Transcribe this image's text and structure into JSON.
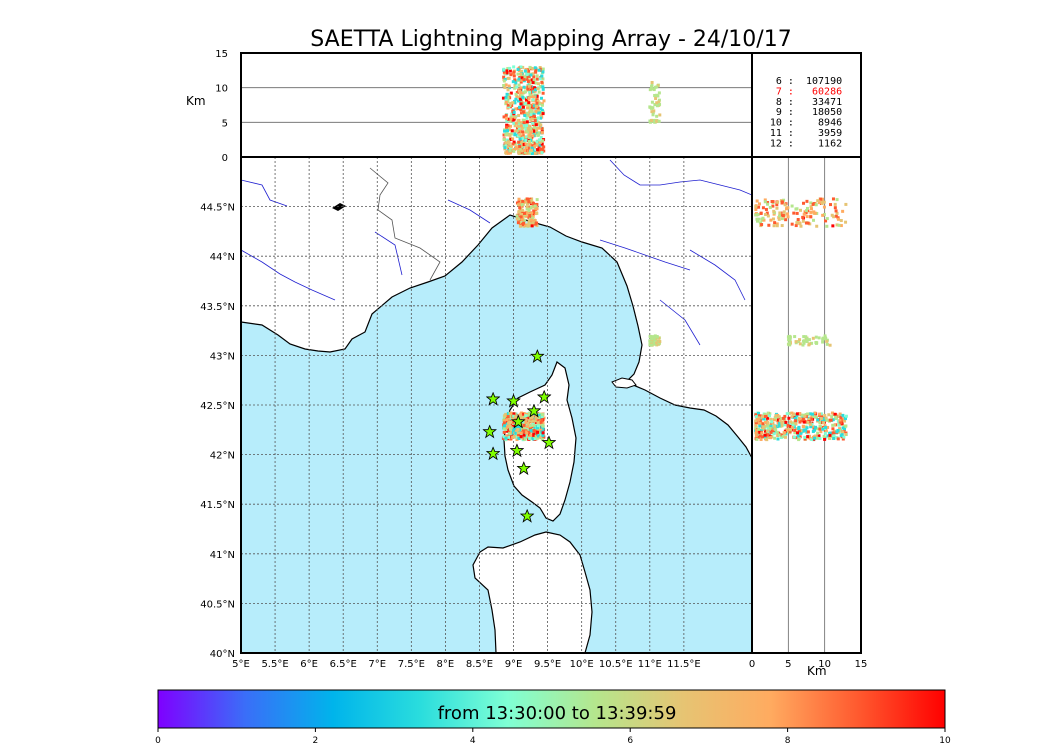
{
  "chart_data": {
    "type": "scatter",
    "title": "SAETTA Lightning Mapping Array - 24/10/17",
    "map": {
      "lon_range": [
        5,
        12.5
      ],
      "lat_range": [
        40,
        45
      ],
      "lon_ticks": [
        "5°E",
        "5.5°E",
        "6°E",
        "6.5°E",
        "7°E",
        "7.5°E",
        "8°E",
        "8.5°E",
        "9°E",
        "9.5°E",
        "10°E",
        "10.5°E",
        "11°E",
        "11.5°E"
      ],
      "lat_ticks": [
        "40°N",
        "40.5°N",
        "41°N",
        "41.5°N",
        "42°N",
        "42.5°N",
        "43°N",
        "43.5°N",
        "44°N",
        "44.5°N"
      ],
      "grid": true
    },
    "altitude_panel": {
      "ylabel": "Km",
      "ylim": [
        0,
        15
      ],
      "yticks": [
        "0",
        "5",
        "10",
        "15"
      ]
    },
    "side_panel": {
      "xlabel": "Km",
      "xlim": [
        0,
        15
      ],
      "xticks": [
        "0",
        "5",
        "10",
        "15"
      ]
    },
    "counts": [
      {
        "label": "6",
        "value": "107190",
        "highlight": false
      },
      {
        "label": "7",
        "value": "60286",
        "highlight": true
      },
      {
        "label": "8",
        "value": "33471",
        "highlight": false
      },
      {
        "label": "9",
        "value": "18050",
        "highlight": false
      },
      {
        "label": "10",
        "value": "8946",
        "highlight": false
      },
      {
        "label": "11",
        "value": "3959",
        "highlight": false
      },
      {
        "label": "12",
        "value": "1162",
        "highlight": false
      }
    ],
    "stations": [
      {
        "lon": 8.7,
        "lat": 42.56
      },
      {
        "lon": 9.0,
        "lat": 42.54
      },
      {
        "lon": 9.35,
        "lat": 42.99
      },
      {
        "lon": 9.45,
        "lat": 42.58
      },
      {
        "lon": 9.3,
        "lat": 42.44
      },
      {
        "lon": 9.07,
        "lat": 42.33
      },
      {
        "lon": 8.65,
        "lat": 42.23
      },
      {
        "lon": 8.7,
        "lat": 42.01
      },
      {
        "lon": 9.05,
        "lat": 42.04
      },
      {
        "lon": 9.52,
        "lat": 42.12
      },
      {
        "lon": 9.15,
        "lat": 41.86
      },
      {
        "lon": 9.2,
        "lat": 41.38
      }
    ],
    "clusters": [
      {
        "lon": [
          9.05,
          9.35
        ],
        "lat": [
          44.3,
          44.58
        ],
        "alt": [
          0.5,
          13
        ],
        "time_range": [
          5,
          9.5
        ],
        "n": 160
      },
      {
        "lon": [
          11.0,
          11.15
        ],
        "lat": [
          43.1,
          43.2
        ],
        "alt": [
          5,
          11
        ],
        "time_range": [
          5.5,
          6.5
        ],
        "n": 50
      },
      {
        "lon": [
          8.85,
          9.45
        ],
        "lat": [
          42.15,
          42.42
        ],
        "alt": [
          0.5,
          13
        ],
        "time_range": [
          3,
          10
        ],
        "n": 520
      }
    ],
    "colorbar": {
      "label": "from 13:30:00 to 13:39:59",
      "range": [
        0,
        10
      ],
      "ticks": [
        "0",
        "2",
        "4",
        "6",
        "8",
        "10"
      ],
      "stops": [
        "#7f00ff",
        "#3a6ef8",
        "#00b4eb",
        "#2adddd",
        "#7fffd4",
        "#b5e68d",
        "#e6c473",
        "#ffab60",
        "#ff5a2f",
        "#ff0000"
      ]
    },
    "colors": {
      "sea": "#b7edfb",
      "land": "#ffffff",
      "coast": "#000000",
      "rivers": "#2020d0",
      "borders": "#555555",
      "grid": "#555555",
      "station": "#7fff00"
    }
  }
}
